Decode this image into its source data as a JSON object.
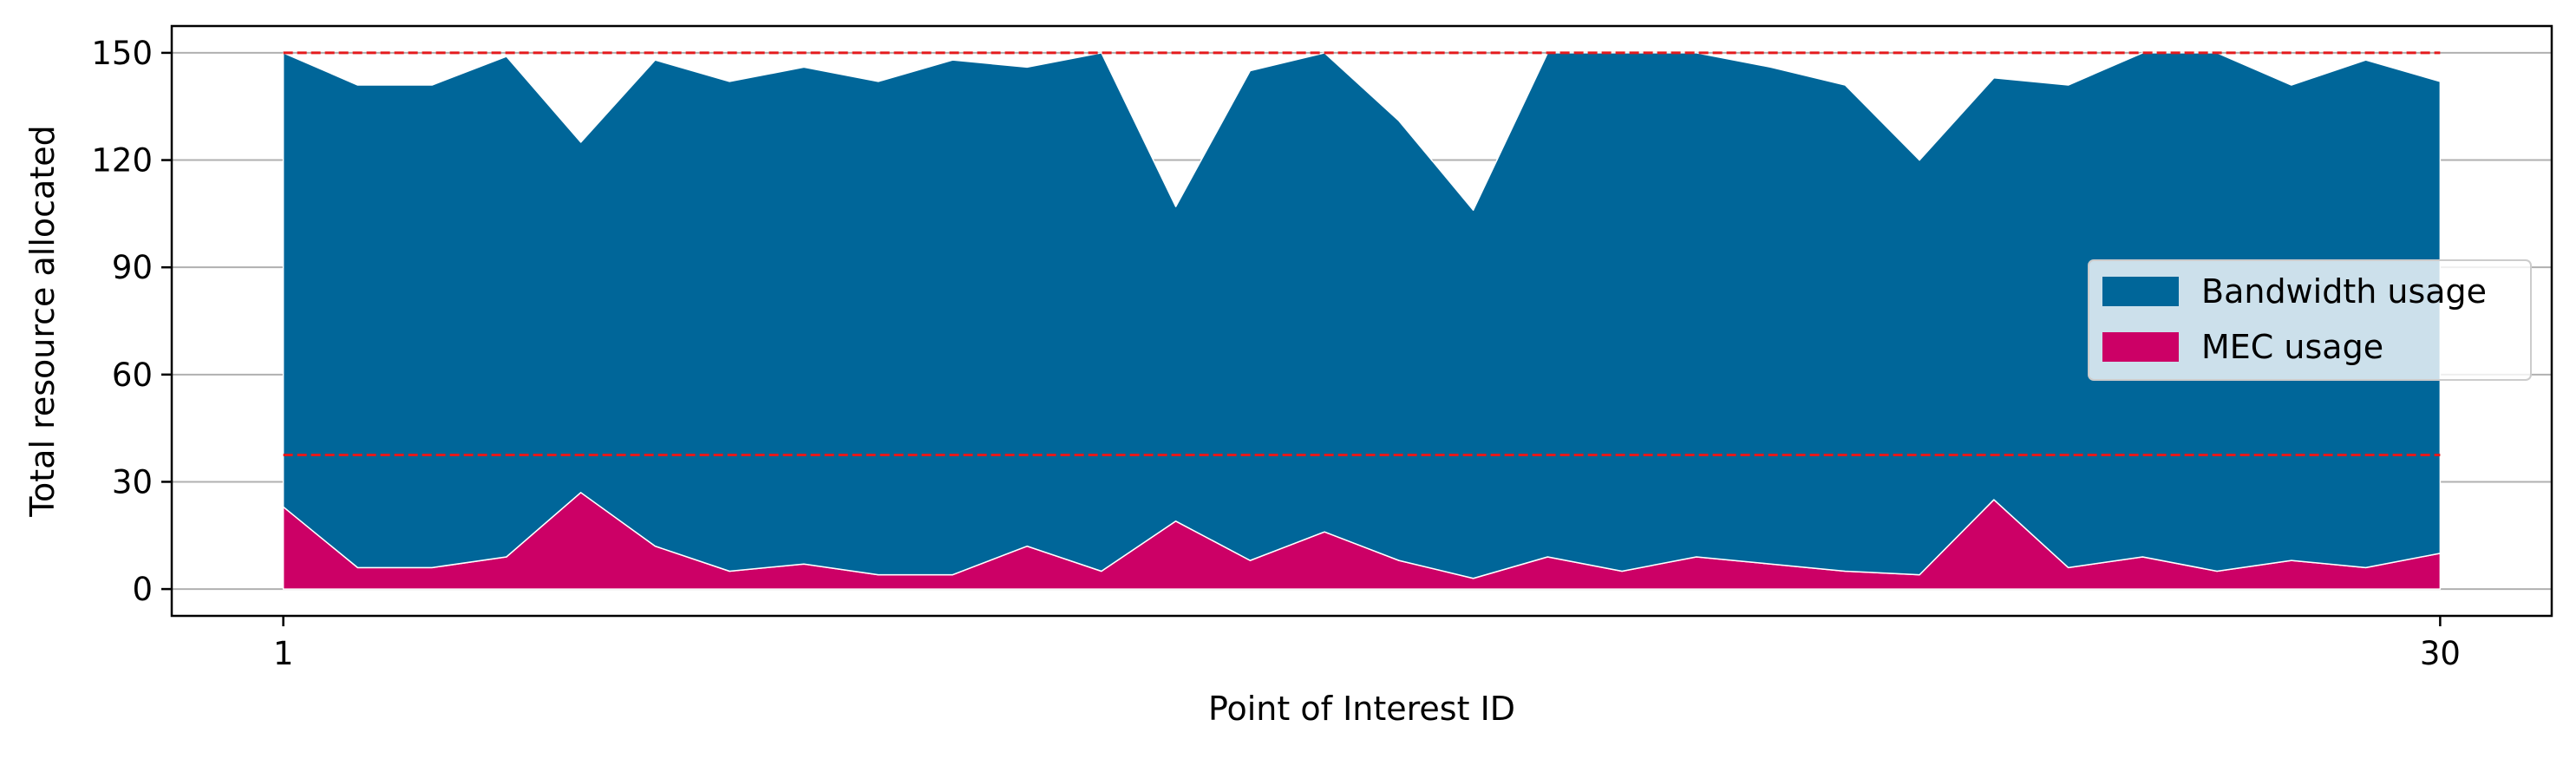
{
  "chart_data": {
    "type": "area",
    "stacked": true,
    "xlabel": "Point of Interest ID",
    "ylabel": "Total resource allocated",
    "x": [
      1,
      2,
      3,
      4,
      5,
      6,
      7,
      8,
      9,
      10,
      11,
      12,
      13,
      14,
      15,
      16,
      17,
      18,
      19,
      20,
      21,
      22,
      23,
      24,
      25,
      26,
      27,
      28,
      29,
      30
    ],
    "xticks": [
      1,
      30
    ],
    "yticks": [
      0,
      30,
      60,
      90,
      120,
      150
    ],
    "xlim": [
      -0.5,
      31.5
    ],
    "ylim": [
      -7.5,
      157.5
    ],
    "grid": "y",
    "legend_position": "center-right",
    "series": [
      {
        "name": "MEC usage",
        "color": "#CC0066",
        "values": [
          23,
          6,
          6,
          9,
          27,
          12,
          5,
          7,
          4,
          4,
          12,
          5,
          19,
          8,
          16,
          8,
          3,
          9,
          5,
          9,
          7,
          5,
          4,
          25,
          6,
          9,
          5,
          8,
          6,
          10
        ]
      },
      {
        "name": "Bandwidth usage",
        "color": "#006699",
        "values": [
          127,
          135,
          135,
          140,
          98,
          136,
          137,
          139,
          138,
          144,
          134,
          145,
          88,
          137,
          134,
          123,
          103,
          141,
          145,
          141,
          139,
          136,
          116,
          118,
          135,
          141,
          145,
          133,
          142,
          132
        ]
      }
    ],
    "reference_lines": [
      {
        "y": 150,
        "color": "#E41A1C",
        "style": "dashed"
      },
      {
        "y": 37.5,
        "color": "#E41A1C",
        "style": "dashed"
      }
    ]
  }
}
